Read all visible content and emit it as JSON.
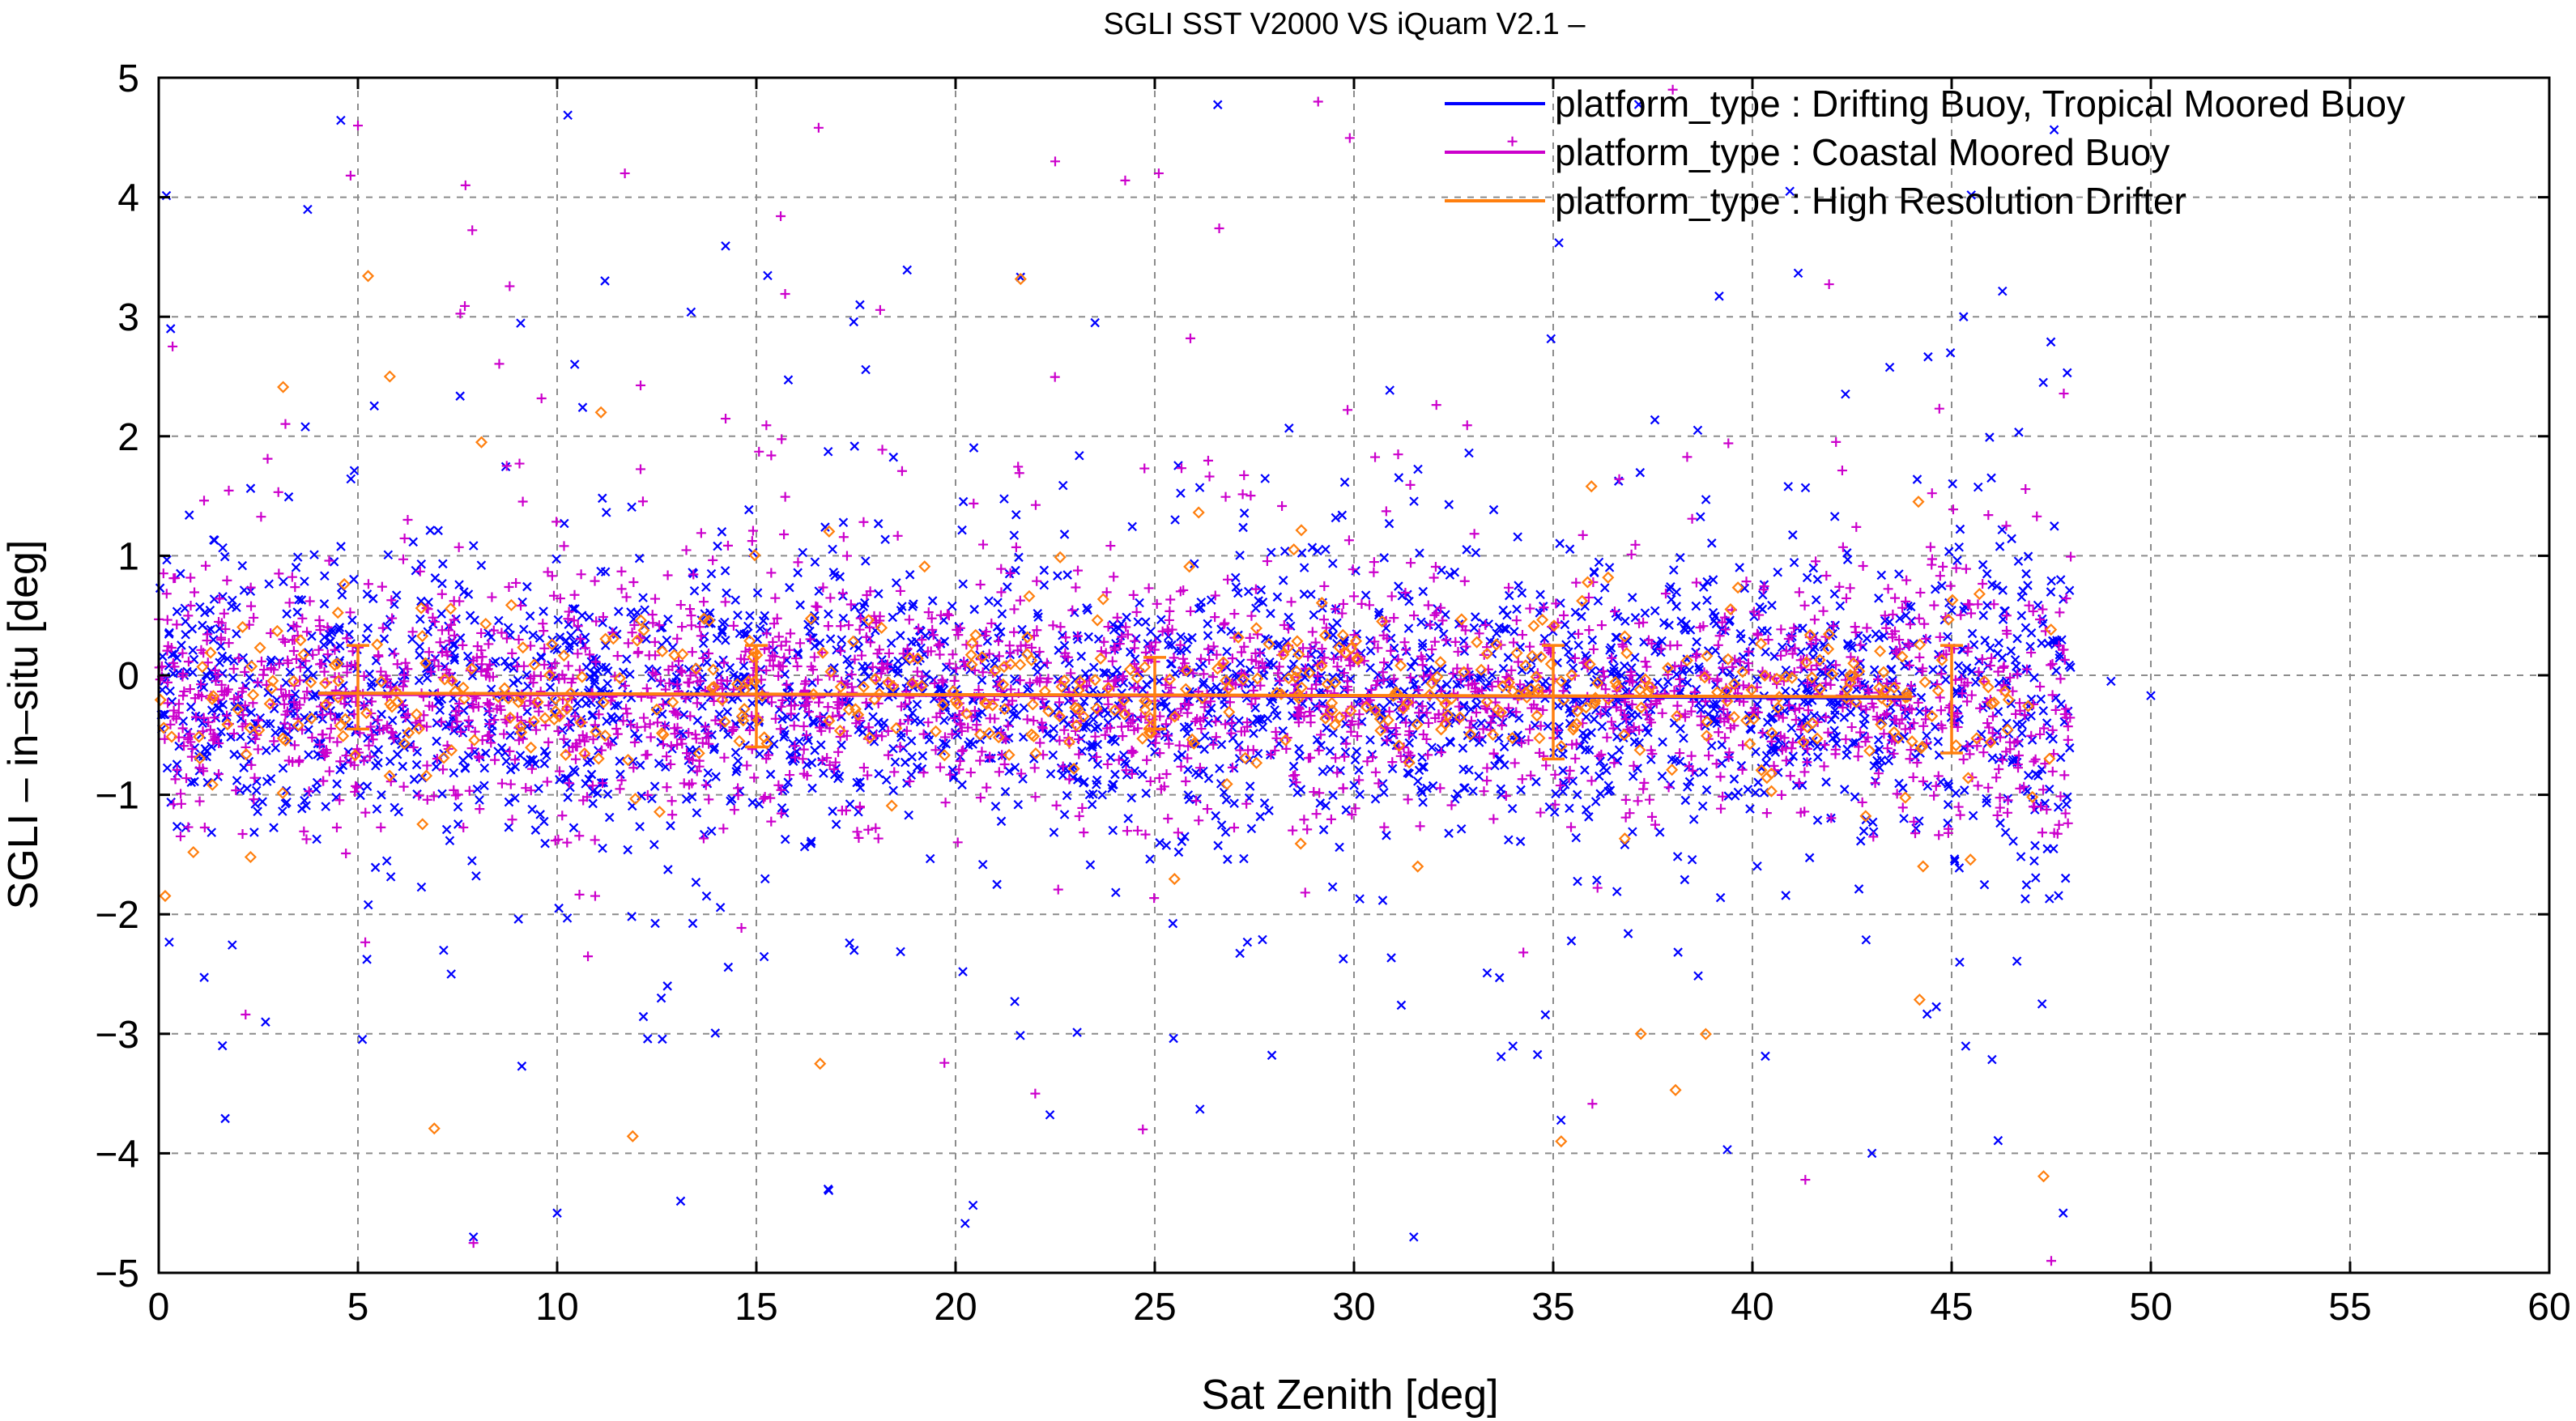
{
  "chart_data": {
    "type": "scatter",
    "title": "SGLI SST V2000 VS iQuam V2.1  –",
    "xlabel": "Sat Zenith [deg]",
    "ylabel": "SGLI – in–situ [deg]",
    "xlim": [
      0,
      60
    ],
    "ylim": [
      -5,
      5
    ],
    "xticks": [
      0,
      5,
      10,
      15,
      20,
      25,
      30,
      35,
      40,
      45,
      50,
      55,
      60
    ],
    "yticks": [
      -5,
      -4,
      -3,
      -2,
      -1,
      0,
      1,
      2,
      3,
      4,
      5
    ],
    "xtick_labels": [
      "0",
      "5",
      "10",
      "15",
      "20",
      "25",
      "30",
      "35",
      "40",
      "45",
      "50",
      "55",
      "60"
    ],
    "ytick_labels": [
      "−5",
      "−4",
      "−3",
      "−2",
      "−1",
      "0",
      "1",
      "2",
      "3",
      "4",
      "5"
    ],
    "grid": true,
    "legend_position": "top-right",
    "series": [
      {
        "name": "platform_type : Drifting Buoy, Tropical Moored Buoy",
        "color": "#0000ff",
        "marker": "x",
        "x_range": [
          0,
          48
        ],
        "approx_mean": -0.17,
        "approx_core_spread": 0.5,
        "mean_line": {
          "x": [
            4,
            44
          ],
          "y": [
            -0.15,
            -0.19
          ]
        },
        "sample_points": [
          [
            0.3,
            2.9
          ],
          [
            1.6,
            -3.1
          ],
          [
            7.9,
            -4.7
          ],
          [
            10.0,
            -4.5
          ],
          [
            11.2,
            3.3
          ],
          [
            13.1,
            -4.4
          ],
          [
            16.8,
            -4.3
          ],
          [
            17.6,
            3.1
          ],
          [
            23.5,
            2.95
          ],
          [
            31.5,
            -4.7
          ],
          [
            43.0,
            -4.0
          ],
          [
            45.3,
            3.0
          ],
          [
            47.3,
            2.45
          ],
          [
            47.8,
            -4.5
          ],
          [
            49.0,
            -0.05
          ],
          [
            50.0,
            -0.17
          ]
        ]
      },
      {
        "name": "platform_type : Coastal Moored Buoy",
        "color": "#cc00cc",
        "marker": "+",
        "x_range": [
          0,
          48
        ],
        "approx_mean": -0.15,
        "approx_core_spread": 0.45,
        "mean_line": {
          "x": [
            4,
            44
          ],
          "y": [
            -0.16,
            -0.18
          ]
        },
        "sample_points": [
          [
            5.0,
            4.6
          ],
          [
            7.7,
            4.1
          ],
          [
            11.7,
            4.2
          ],
          [
            22.5,
            4.3
          ],
          [
            25.1,
            4.2
          ],
          [
            29.1,
            4.8
          ],
          [
            38.0,
            4.9
          ],
          [
            47.5,
            -4.9
          ],
          [
            22.0,
            -3.5
          ],
          [
            24.7,
            -3.8
          ],
          [
            7.9,
            -4.75
          ]
        ]
      },
      {
        "name": "platform_type : High Resolution Drifter",
        "color": "#ff7f0e",
        "marker": "diamond",
        "x_range": [
          0,
          47.5
        ],
        "approx_mean": -0.16,
        "approx_core_spread": 0.35,
        "mean_line": {
          "x": [
            4,
            44
          ],
          "y": [
            -0.15,
            -0.18
          ]
        },
        "error_bars": [
          {
            "x": 5,
            "y": -0.2,
            "low": -0.45,
            "high": 0.25
          },
          {
            "x": 15,
            "y": -0.17,
            "low": -0.6,
            "high": 0.25
          },
          {
            "x": 25,
            "y": -0.2,
            "low": -0.45,
            "high": 0.15
          },
          {
            "x": 35,
            "y": -0.2,
            "low": -0.7,
            "high": 0.25
          },
          {
            "x": 45,
            "y": -0.2,
            "low": -0.65,
            "high": 0.25
          }
        ],
        "sample_points": [
          [
            5.8,
            2.5
          ],
          [
            8.1,
            1.95
          ],
          [
            11.1,
            2.2
          ],
          [
            16.6,
            -3.25
          ],
          [
            35.2,
            -3.9
          ],
          [
            37.2,
            -3.0
          ],
          [
            31.6,
            -1.6
          ]
        ]
      }
    ]
  }
}
